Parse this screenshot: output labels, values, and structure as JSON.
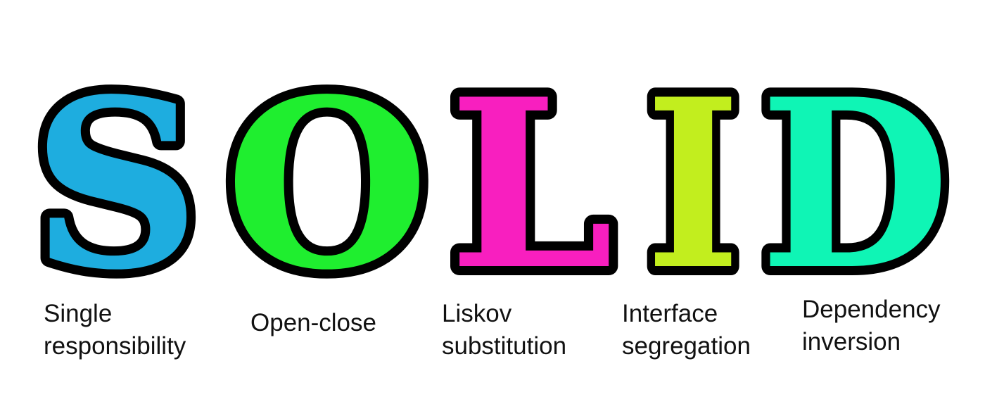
{
  "letters": [
    {
      "char": "S",
      "color": "#1eaddf",
      "icon": "letter-s-glyph"
    },
    {
      "char": "O",
      "color": "#1fee2f",
      "icon": "letter-o-glyph"
    },
    {
      "char": "L",
      "color": "#f81fbf",
      "icon": "letter-l-glyph"
    },
    {
      "char": "I",
      "color": "#c2ee1e",
      "icon": "letter-i-glyph"
    },
    {
      "char": "D",
      "color": "#0ff5b5",
      "icon": "letter-d-glyph"
    }
  ],
  "outline_color": "#000000",
  "captions": [
    {
      "line1": "Single",
      "line2": "responsibility"
    },
    {
      "line1": "Open-close",
      "line2": ""
    },
    {
      "line1": "Liskov",
      "line2": "substitution"
    },
    {
      "line1": "Interface",
      "line2": "segregation"
    },
    {
      "line1": "Dependency",
      "line2": "inversion"
    }
  ]
}
